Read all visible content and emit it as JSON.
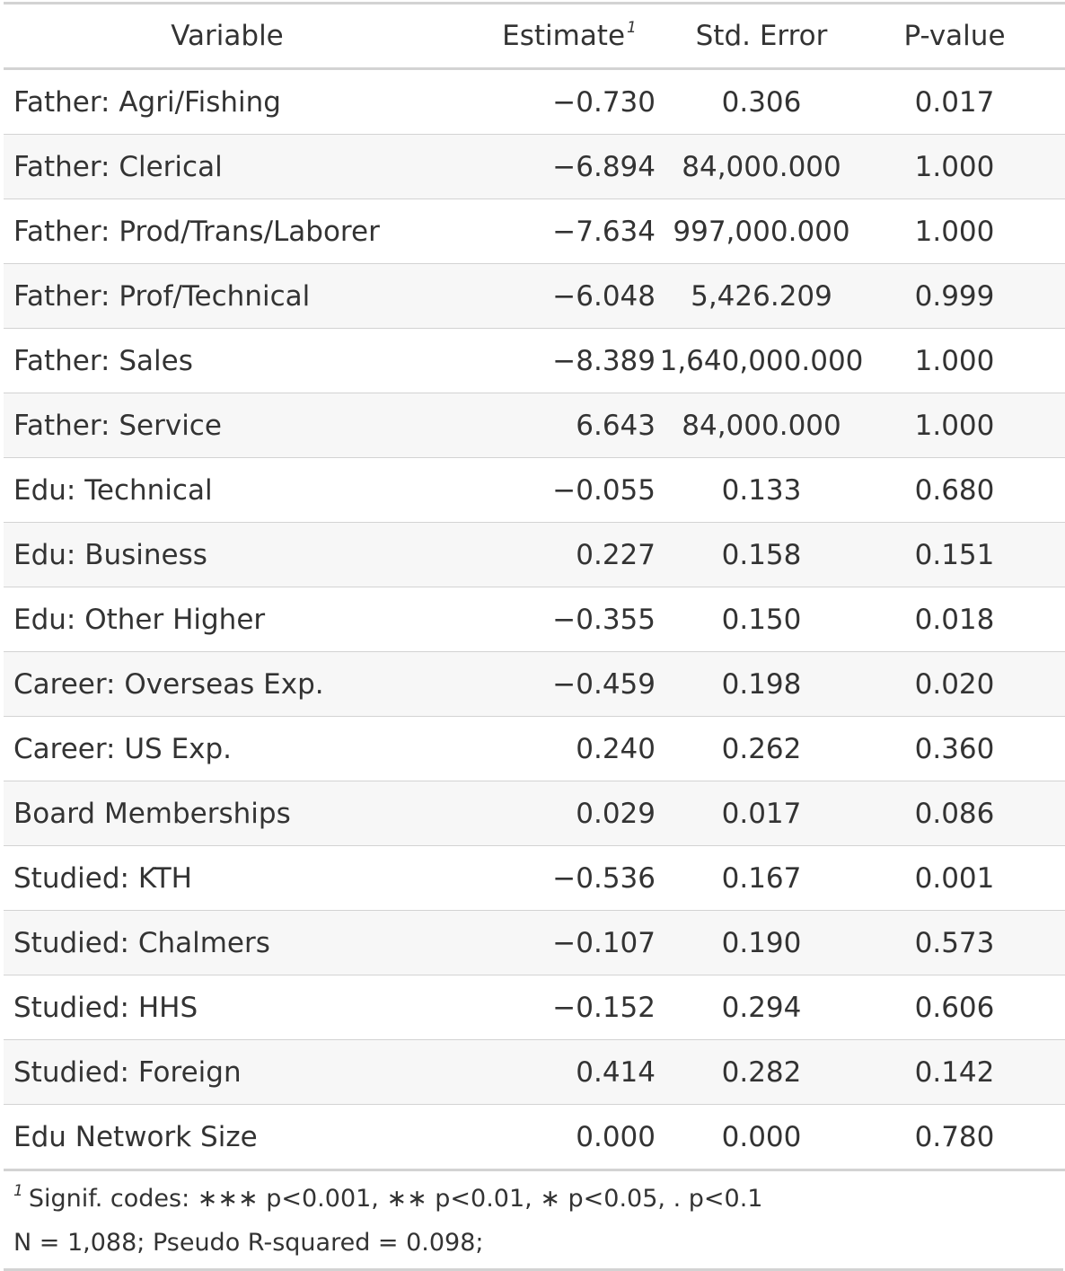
{
  "table": {
    "headers": {
      "variable": "Variable",
      "estimate": "Estimate",
      "estimate_footnote_mark": "1",
      "std_error": "Std. Error",
      "p_value": "P-value"
    },
    "rows": [
      {
        "variable": "Father: Agri/Fishing",
        "estimate": "−0.730",
        "std_error": "0.306",
        "p_value": "0.017",
        "signif": "*"
      },
      {
        "variable": "Father: Clerical",
        "estimate": "−6.894",
        "std_error": "84,000.000",
        "p_value": "1.000",
        "signif": ""
      },
      {
        "variable": "Father: Prod/Trans/Laborer",
        "estimate": "−7.634",
        "std_error": "997,000.000",
        "p_value": "1.000",
        "signif": ""
      },
      {
        "variable": "Father: Prof/Technical",
        "estimate": "−6.048",
        "std_error": "5,426.209",
        "p_value": "0.999",
        "signif": ""
      },
      {
        "variable": "Father: Sales",
        "estimate": "−8.389",
        "std_error": "1,640,000.000",
        "p_value": "1.000",
        "signif": ""
      },
      {
        "variable": "Father: Service",
        "estimate": "6.643",
        "std_error": "84,000.000",
        "p_value": "1.000",
        "signif": ""
      },
      {
        "variable": "Edu: Technical",
        "estimate": "−0.055",
        "std_error": "0.133",
        "p_value": "0.680",
        "signif": ""
      },
      {
        "variable": "Edu: Business",
        "estimate": "0.227",
        "std_error": "0.158",
        "p_value": "0.151",
        "signif": ""
      },
      {
        "variable": "Edu: Other Higher",
        "estimate": "−0.355",
        "std_error": "0.150",
        "p_value": "0.018",
        "signif": "*"
      },
      {
        "variable": "Career: Overseas Exp.",
        "estimate": "−0.459",
        "std_error": "0.198",
        "p_value": "0.020",
        "signif": "*"
      },
      {
        "variable": "Career: US Exp.",
        "estimate": "0.240",
        "std_error": "0.262",
        "p_value": "0.360",
        "signif": ""
      },
      {
        "variable": "Board Memberships",
        "estimate": "0.029",
        "std_error": "0.017",
        "p_value": "0.086",
        "signif": "."
      },
      {
        "variable": "Studied: KTH",
        "estimate": "−0.536",
        "std_error": "0.167",
        "p_value": "0.001",
        "signif": "**"
      },
      {
        "variable": "Studied: Chalmers",
        "estimate": "−0.107",
        "std_error": "0.190",
        "p_value": "0.573",
        "signif": ""
      },
      {
        "variable": "Studied: HHS",
        "estimate": "−0.152",
        "std_error": "0.294",
        "p_value": "0.606",
        "signif": ""
      },
      {
        "variable": "Studied: Foreign",
        "estimate": "0.414",
        "std_error": "0.282",
        "p_value": "0.142",
        "signif": ""
      },
      {
        "variable": "Edu Network Size",
        "estimate": "0.000",
        "std_error": "0.000",
        "p_value": "0.780",
        "signif": ""
      }
    ],
    "footnotes": {
      "mark": "1",
      "signif_codes": "Signif. codes: ∗∗∗ p<0.001, ∗∗ p<0.01, ∗ p<0.05, . p<0.1",
      "model_summary": "N = 1,088; Pseudo R-squared = 0.098;"
    }
  }
}
